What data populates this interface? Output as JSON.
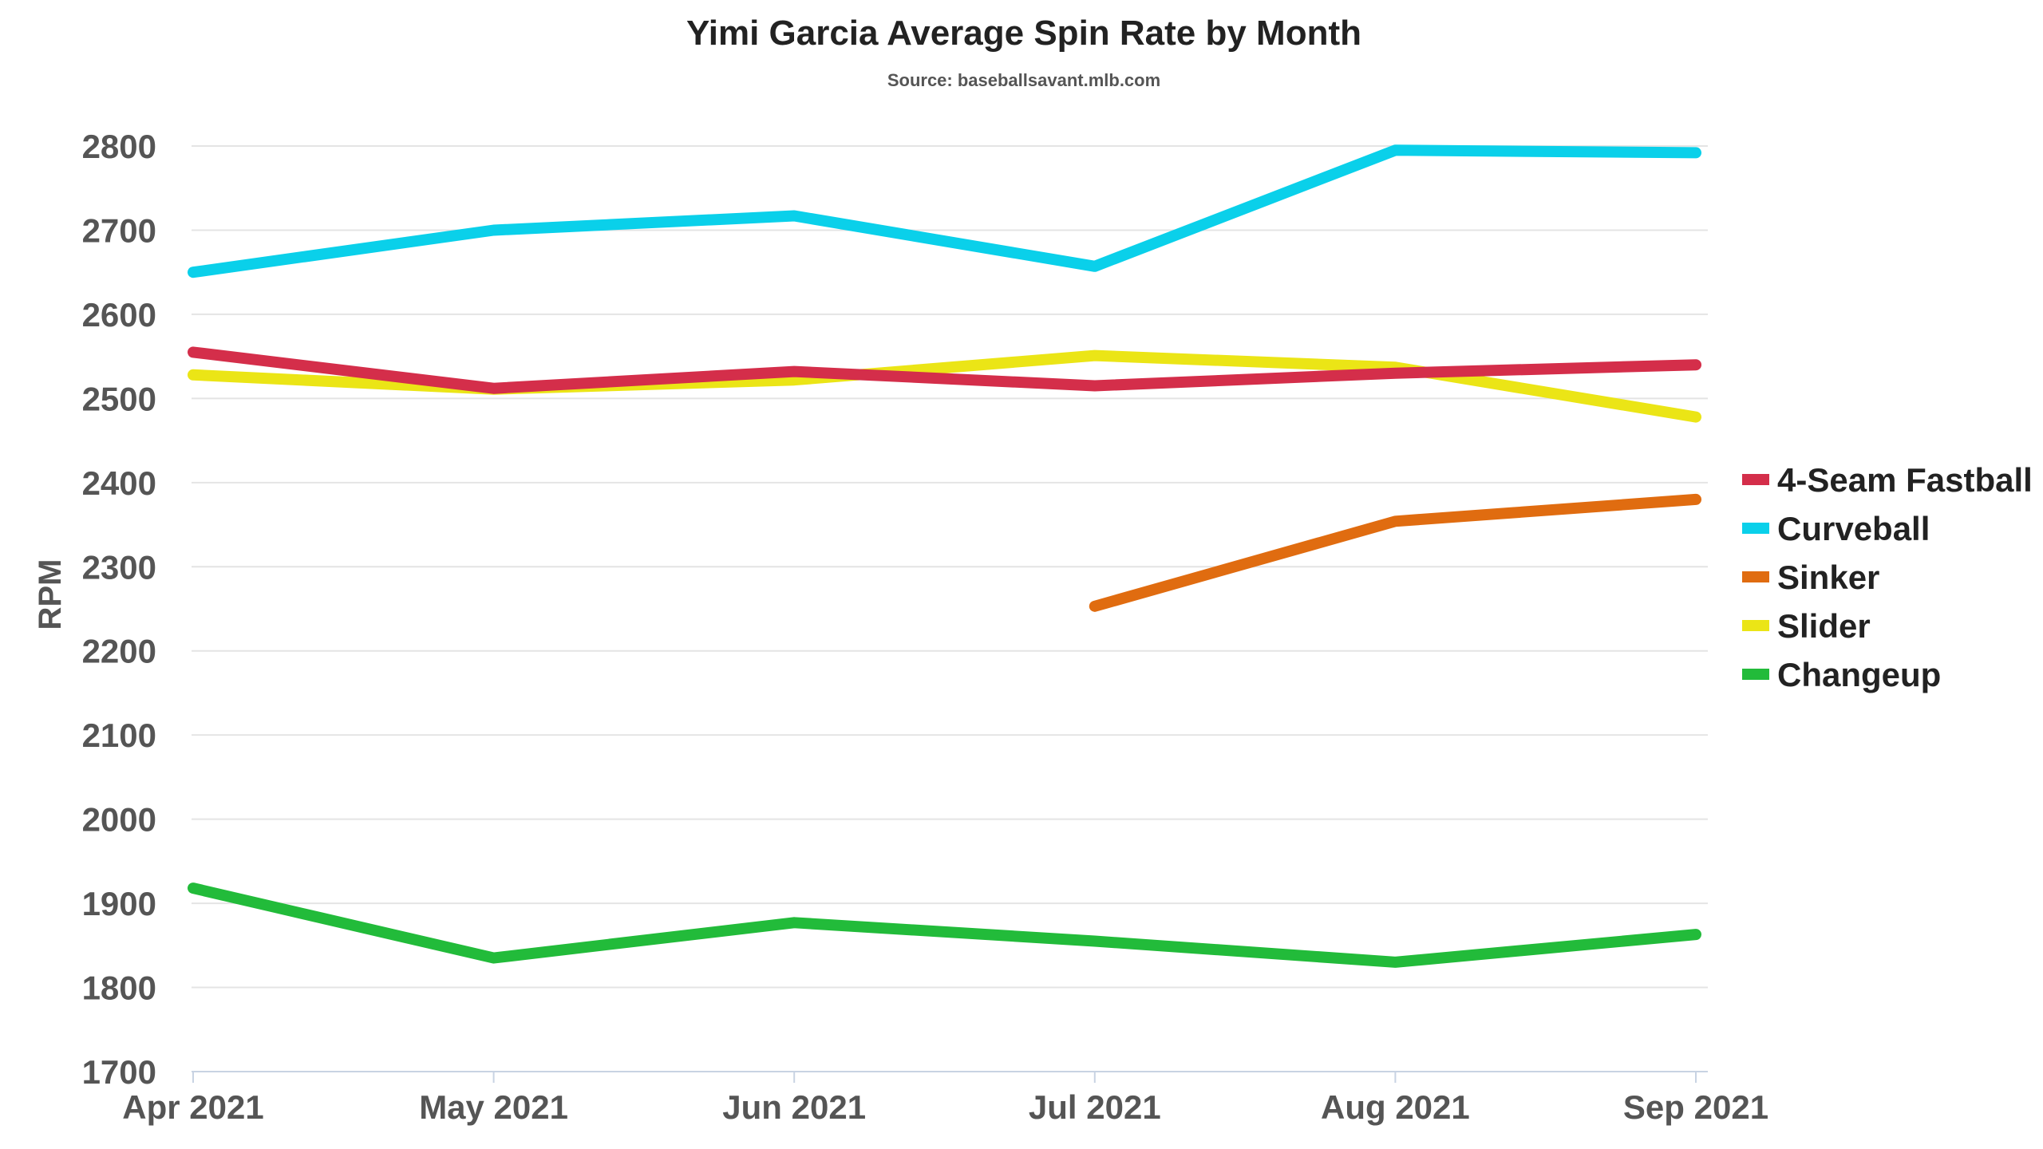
{
  "chart_data": {
    "type": "line",
    "title": "Yimi Garcia Average Spin Rate by Month",
    "subtitle": "Source: baseballsavant.mlb.com",
    "xlabel": "",
    "ylabel": "RPM",
    "categories": [
      "Apr 2021",
      "May 2021",
      "Jun 2021",
      "Jul 2021",
      "Aug 2021",
      "Sep 2021"
    ],
    "ylim": [
      1700,
      2800
    ],
    "yticks": [
      1700,
      1800,
      1900,
      2000,
      2100,
      2200,
      2300,
      2400,
      2500,
      2600,
      2700,
      2800
    ],
    "grid": true,
    "legend_position": "right",
    "series": [
      {
        "name": "4-Seam Fastball",
        "color": "#d42e4a",
        "values": [
          2555,
          2512,
          2532,
          2515,
          2530,
          2540
        ]
      },
      {
        "name": "Curveball",
        "color": "#0ad0ea",
        "values": [
          2650,
          2700,
          2717,
          2657,
          2795,
          2792
        ]
      },
      {
        "name": "Sinker",
        "color": "#e06c10",
        "values": [
          null,
          null,
          null,
          2253,
          2354,
          2380
        ]
      },
      {
        "name": "Slider",
        "color": "#ebe516",
        "values": [
          2528,
          2511,
          2522,
          2551,
          2537,
          2478
        ]
      },
      {
        "name": "Changeup",
        "color": "#22bb3a",
        "values": [
          1918,
          1835,
          1877,
          1855,
          1830,
          1863
        ]
      }
    ]
  }
}
